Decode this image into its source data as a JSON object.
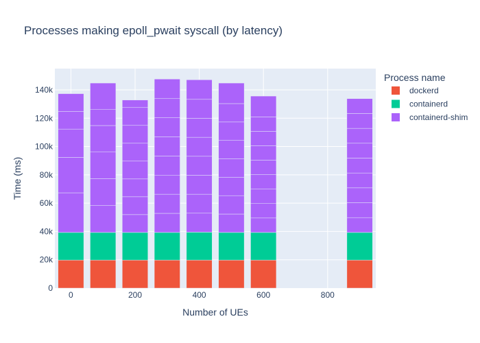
{
  "chart_data": {
    "type": "bar",
    "stacked": true,
    "title": "Processes making epoll_pwait syscall (by latency)",
    "xlabel": "Number of UEs",
    "ylabel": "Time (ms)",
    "x": [
      0,
      100,
      200,
      300,
      400,
      500,
      600,
      900
    ],
    "xlim": [
      -50,
      950
    ],
    "ylim": [
      0,
      155000
    ],
    "xticks": [
      0,
      200,
      400,
      600,
      800
    ],
    "xtick_labels": [
      "0",
      "200",
      "400",
      "600",
      "800"
    ],
    "yticks": [
      0,
      20000,
      40000,
      60000,
      80000,
      100000,
      120000,
      140000
    ],
    "ytick_labels": [
      "0",
      "20k",
      "40k",
      "60k",
      "80k",
      "100k",
      "120k",
      "140k"
    ],
    "grid": true,
    "legend": {
      "title": "Process name",
      "placement": "top-right-outside"
    },
    "series": [
      {
        "name": "dockerd",
        "color": "#EF553B",
        "values": [
          19800,
          19800,
          19800,
          19800,
          19800,
          19800,
          19800,
          19800
        ],
        "segments": [
          [
            19800
          ],
          [
            19800
          ],
          [
            19800
          ],
          [
            19800
          ],
          [
            19800
          ],
          [
            19800
          ],
          [
            19800
          ],
          [
            19800
          ]
        ]
      },
      {
        "name": "containerd",
        "color": "#00CC96",
        "values": [
          19500,
          19500,
          19500,
          19500,
          19700,
          19500,
          19500,
          19500
        ],
        "segments": [
          [
            19500
          ],
          [
            19500
          ],
          [
            19500
          ],
          [
            19500
          ],
          [
            19700
          ],
          [
            19500
          ],
          [
            19500
          ],
          [
            19500
          ]
        ]
      },
      {
        "name": "containerd-shim",
        "color": "#AB63FA",
        "values": [
          98000,
          105500,
          93500,
          108300,
          107600,
          105500,
          96300,
          94500
        ],
        "segments": [
          [
            28000,
            25000,
            20000,
            12500,
            12500
          ],
          [
            19000,
            19000,
            19000,
            18500,
            11500,
            18500
          ],
          [
            12600,
            12600,
            12600,
            12600,
            12600,
            12600,
            12600,
            5300
          ],
          [
            13500,
            13500,
            13500,
            13500,
            13500,
            13500,
            13500,
            13800
          ],
          [
            13400,
            13400,
            13400,
            13400,
            13400,
            13400,
            13400,
            13800
          ],
          [
            13000,
            13000,
            13000,
            13000,
            13000,
            13000,
            13000,
            14500
          ],
          [
            10200,
            10200,
            10200,
            10200,
            10200,
            10200,
            10200,
            10200,
            14700
          ],
          [
            10500,
            10500,
            10500,
            10500,
            10500,
            10500,
            10500,
            10500,
            10500
          ]
        ]
      }
    ]
  }
}
